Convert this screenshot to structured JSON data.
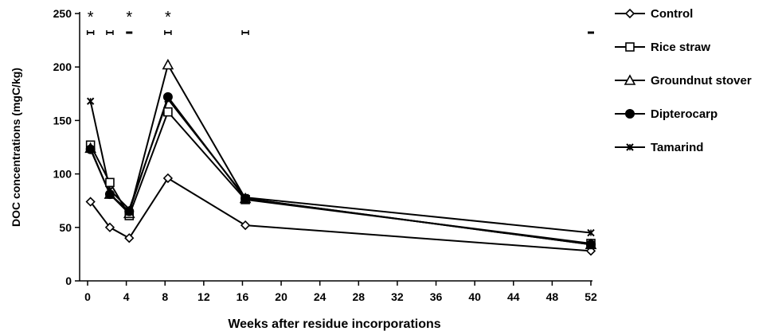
{
  "chart_data": {
    "type": "line",
    "title": "",
    "xlabel": "Weeks after residue incorporations",
    "ylabel": "DOC concentrations (mgC/kg)",
    "xlim": [
      0,
      52
    ],
    "ylim": [
      0,
      250
    ],
    "x_ticks": [
      0,
      4,
      8,
      12,
      16,
      20,
      24,
      28,
      32,
      36,
      40,
      44,
      48,
      52
    ],
    "y_ticks": [
      0,
      50,
      100,
      150,
      200,
      250
    ],
    "x_tick_labels": [
      "0",
      "4",
      "8",
      "12",
      "16",
      "20",
      "24",
      "28",
      "32",
      "36",
      "40",
      "44",
      "48",
      "52"
    ],
    "y_tick_labels": [
      "0",
      "50",
      "100",
      "150",
      "200",
      "250"
    ],
    "legend_position": "right",
    "grid": false,
    "x": [
      0.3,
      2.3,
      4.3,
      8.3,
      16.3,
      52
    ],
    "series": [
      {
        "name": "Control",
        "marker": "diamond-open",
        "color": "#000000",
        "values": [
          74,
          50,
          40,
          96,
          52,
          28
        ]
      },
      {
        "name": "Rice straw",
        "marker": "square-open",
        "color": "#000000",
        "values": [
          127,
          92,
          61,
          158,
          76,
          35
        ]
      },
      {
        "name": "Groundnut stover",
        "marker": "triangle-open",
        "color": "#000000",
        "values": [
          124,
          81,
          63,
          202,
          77,
          34
        ]
      },
      {
        "name": "Dipterocarp",
        "marker": "circle-filled",
        "color": "#000000",
        "values": [
          123,
          81,
          65,
          172,
          77,
          34
        ]
      },
      {
        "name": "Tamarind",
        "marker": "star",
        "color": "#000000",
        "values": [
          168,
          85,
          67,
          170,
          78,
          45
        ]
      }
    ],
    "significance_markers": [
      {
        "x": 0.3,
        "label": "*"
      },
      {
        "x": 4.3,
        "label": "*"
      },
      {
        "x": 8.3,
        "label": "*"
      }
    ],
    "error_bar_markers": [
      {
        "x": 0.3,
        "style": "bar"
      },
      {
        "x": 2.3,
        "style": "bar"
      },
      {
        "x": 4.3,
        "style": "dash"
      },
      {
        "x": 8.3,
        "style": "bar"
      },
      {
        "x": 16.3,
        "style": "bar"
      },
      {
        "x": 52,
        "style": "dash"
      }
    ]
  }
}
